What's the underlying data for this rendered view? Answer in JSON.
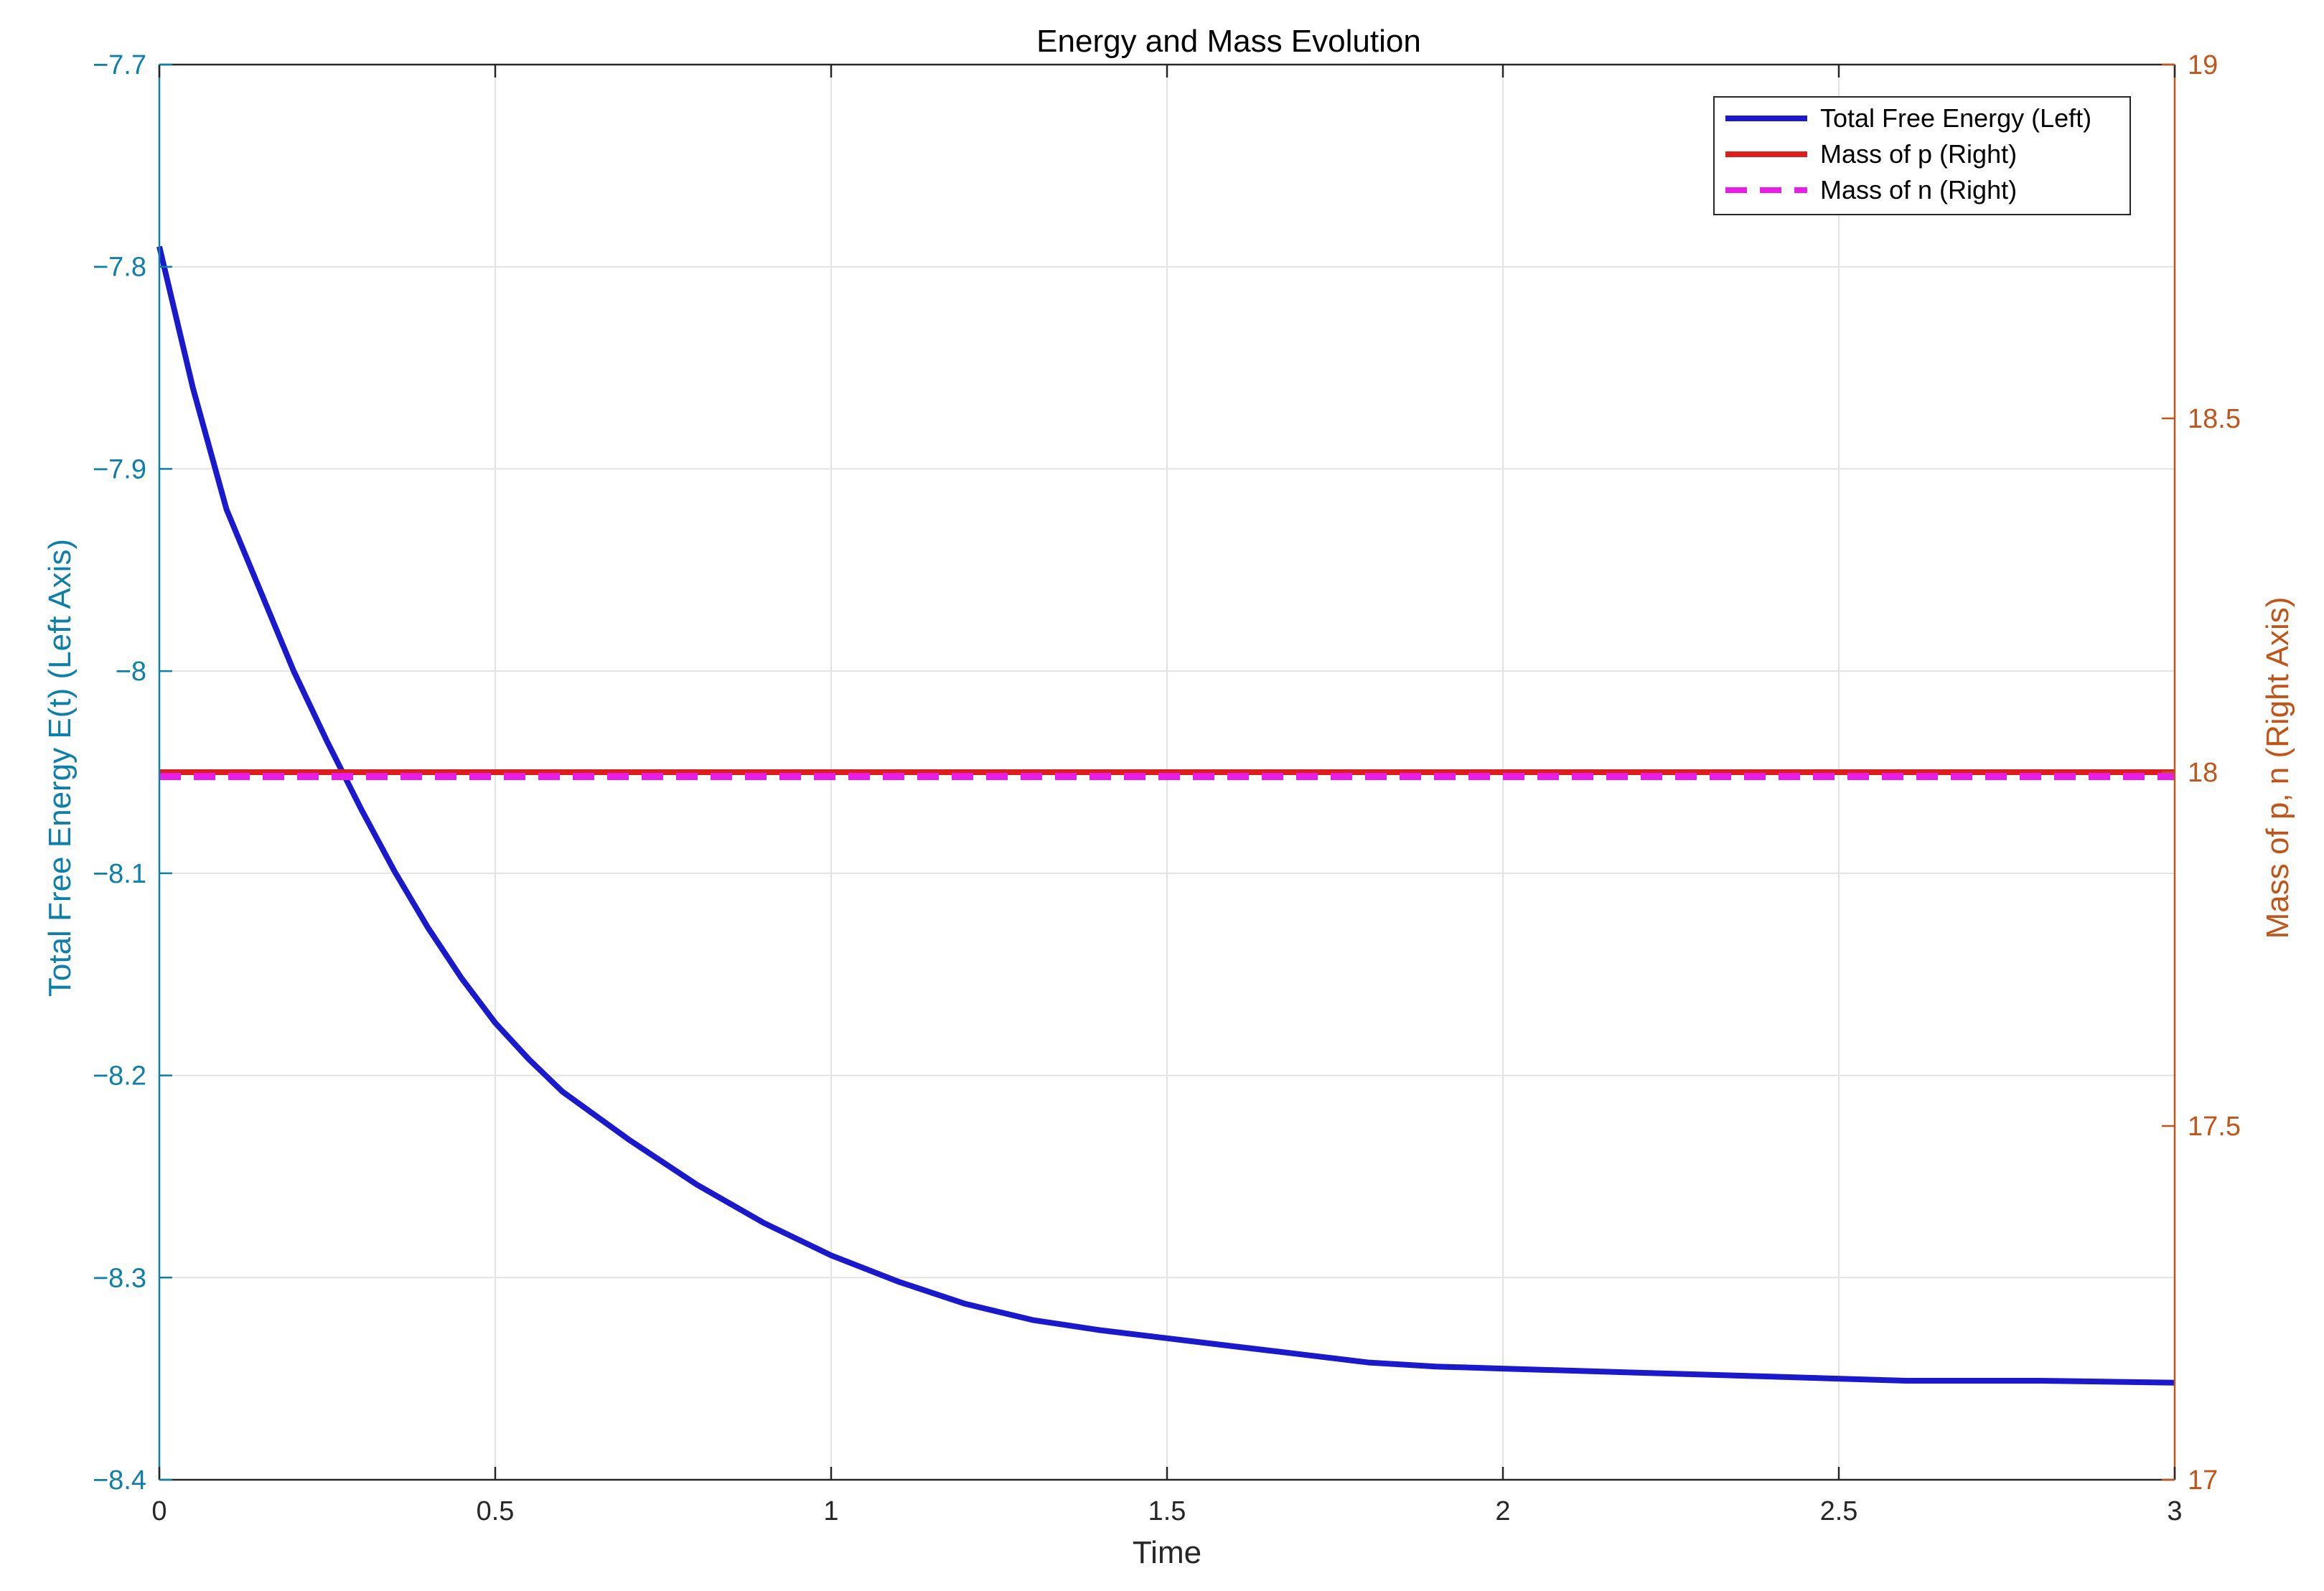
{
  "colors": {
    "left_axis": "#0e7fa8",
    "right_axis": "#c0551a",
    "energy_line": "#1a1acc",
    "mass_p_line": "#dd1c1c",
    "mass_n_line": "#e81de8",
    "grid": "#e3e3e3",
    "x_axis": "#262626"
  },
  "chart_data": {
    "type": "line",
    "title": "Energy and Mass Evolution",
    "xlabel": "Time",
    "ylabel_left": "Total Free Energy E(t) (Left Axis)",
    "ylabel_right": "Mass of p, n (Right Axis)",
    "xlim": [
      0,
      3
    ],
    "ylim_left": [
      -8.4,
      -7.7
    ],
    "ylim_right": [
      17,
      19
    ],
    "x_ticks": [
      0,
      0.5,
      1,
      1.5,
      2,
      2.5,
      3
    ],
    "x_tick_labels": [
      "0",
      "0.5",
      "1",
      "1.5",
      "2",
      "2.5",
      "3"
    ],
    "y_left_ticks": [
      -8.4,
      -8.3,
      -8.2,
      -8.1,
      -8.0,
      -7.9,
      -7.8,
      -7.7
    ],
    "y_left_tick_labels": [
      "−8.4",
      "−8.3",
      "−8.2",
      "−8.1",
      "−8",
      "−7.9",
      "−7.8",
      "−7.7"
    ],
    "y_right_ticks": [
      17,
      17.5,
      18,
      18.5,
      19
    ],
    "y_right_tick_labels": [
      "17",
      "17.5",
      "18",
      "18.5",
      "19"
    ],
    "grid": true,
    "legend_position": "top-right",
    "series": [
      {
        "name": "Total Free Energy (Left)",
        "axis": "left",
        "style": "solid",
        "x": [
          0,
          0.05,
          0.1,
          0.15,
          0.2,
          0.25,
          0.3,
          0.35,
          0.4,
          0.45,
          0.5,
          0.55,
          0.6,
          0.7,
          0.8,
          0.9,
          1.0,
          1.1,
          1.2,
          1.3,
          1.4,
          1.5,
          1.6,
          1.7,
          1.8,
          1.9,
          2.0,
          2.2,
          2.4,
          2.6,
          2.8,
          3.0
        ],
        "y": [
          -7.79,
          -7.86,
          -7.92,
          -7.96,
          -8.0,
          -8.035,
          -8.068,
          -8.099,
          -8.127,
          -8.152,
          -8.174,
          -8.192,
          -8.208,
          -8.232,
          -8.254,
          -8.273,
          -8.289,
          -8.302,
          -8.313,
          -8.321,
          -8.326,
          -8.33,
          -8.334,
          -8.338,
          -8.342,
          -8.344,
          -8.345,
          -8.347,
          -8.349,
          -8.351,
          -8.351,
          -8.352
        ]
      },
      {
        "name": "Mass of p (Right)",
        "axis": "right",
        "style": "solid",
        "x": [
          0,
          3
        ],
        "y": [
          18.0,
          18.0
        ]
      },
      {
        "name": "Mass of n (Right)",
        "axis": "right",
        "style": "dashed",
        "x": [
          0,
          3
        ],
        "y": [
          18.0,
          18.0
        ]
      }
    ]
  }
}
